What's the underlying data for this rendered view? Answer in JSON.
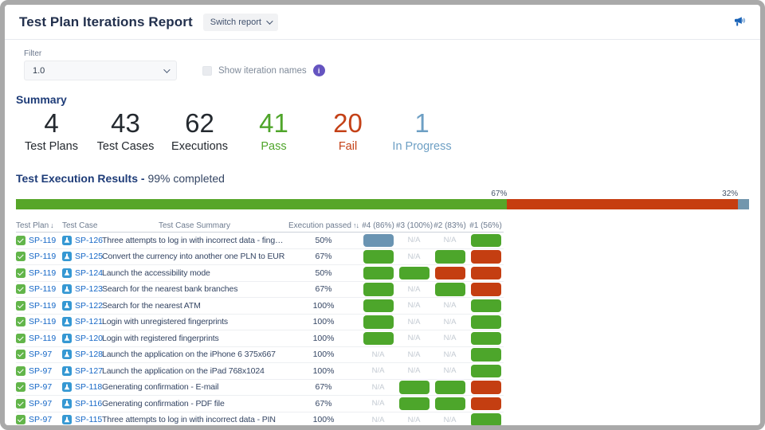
{
  "header": {
    "title": "Test Plan Iterations Report",
    "switch_report_label": "Switch report"
  },
  "filter": {
    "label": "Filter",
    "value": "1.0",
    "show_iteration_names_label": "Show iteration names",
    "info_glyph": "i",
    "checkbox_checked": false
  },
  "summary": {
    "title": "Summary",
    "stats": [
      {
        "value": "4",
        "label": "Test Plans",
        "color": "#24292f"
      },
      {
        "value": "43",
        "label": "Test Cases",
        "color": "#24292f"
      },
      {
        "value": "62",
        "label": "Executions",
        "color": "#24292f"
      },
      {
        "value": "41",
        "label": "Pass",
        "color": "#4fa52a"
      },
      {
        "value": "20",
        "label": "Fail",
        "color": "#c44117"
      },
      {
        "value": "1",
        "label": "In Progress",
        "color": "#6d9fc4"
      }
    ]
  },
  "results": {
    "title_bold": "Test Execution Results -",
    "completed_text": "99% completed",
    "progress": {
      "segments": [
        {
          "name": "passed",
          "percent": 67,
          "label": "67%",
          "color": "#57a629"
        },
        {
          "name": "failed",
          "percent": 31.5,
          "label": "32%",
          "color": "#c63d10"
        },
        {
          "name": "in_progress",
          "percent": 1.5,
          "label": "",
          "color": "#7296ad"
        }
      ]
    }
  },
  "table": {
    "header": {
      "plan": "Test Plan",
      "plan_sort": "↓",
      "case": "Test Case",
      "summary": "Test Case Summary",
      "passed": "Execution passed",
      "passed_sort": "↑↓",
      "iterations": [
        "#4 (86%)",
        "#3 (100%)",
        "#2 (83%)",
        "#1 (56%)"
      ]
    },
    "na_label": "N/A",
    "status_colors": {
      "pass": "#4da62b",
      "fail": "#c43e11",
      "inprogress": "#6a94b2"
    },
    "rows": [
      {
        "plan": "SP-119",
        "case": "SP-126",
        "summary": "Three attempts to log in with incorrect data - fingerprints",
        "passed": "50%",
        "statuses": [
          "inprogress",
          "na",
          "na",
          "pass"
        ]
      },
      {
        "plan": "SP-119",
        "case": "SP-125",
        "summary": "Convert the currency into another one PLN to EUR",
        "passed": "67%",
        "statuses": [
          "pass",
          "na",
          "pass",
          "fail"
        ]
      },
      {
        "plan": "SP-119",
        "case": "SP-124",
        "summary": "Launch the accessibility mode",
        "passed": "50%",
        "statuses": [
          "pass",
          "pass",
          "fail",
          "fail"
        ]
      },
      {
        "plan": "SP-119",
        "case": "SP-123",
        "summary": "Search for the nearest bank branches",
        "passed": "67%",
        "statuses": [
          "pass",
          "na",
          "pass",
          "fail"
        ]
      },
      {
        "plan": "SP-119",
        "case": "SP-122",
        "summary": "Search for the nearest ATM",
        "passed": "100%",
        "statuses": [
          "pass",
          "na",
          "na",
          "pass"
        ]
      },
      {
        "plan": "SP-119",
        "case": "SP-121",
        "summary": "Login with unregistered fingerprints",
        "passed": "100%",
        "statuses": [
          "pass",
          "na",
          "na",
          "pass"
        ]
      },
      {
        "plan": "SP-119",
        "case": "SP-120",
        "summary": "Login with registered fingerprints",
        "passed": "100%",
        "statuses": [
          "pass",
          "na",
          "na",
          "pass"
        ]
      },
      {
        "plan": "SP-97",
        "case": "SP-128",
        "summary": "Launch the application on the iPhone 6 375x667",
        "passed": "100%",
        "statuses": [
          "na",
          "na",
          "na",
          "pass"
        ]
      },
      {
        "plan": "SP-97",
        "case": "SP-127",
        "summary": "Launch the application on the iPad 768x1024",
        "passed": "100%",
        "statuses": [
          "na",
          "na",
          "na",
          "pass"
        ]
      },
      {
        "plan": "SP-97",
        "case": "SP-118",
        "summary": "Generating confirmation - E-mail",
        "passed": "67%",
        "statuses": [
          "na",
          "pass",
          "pass",
          "fail"
        ]
      },
      {
        "plan": "SP-97",
        "case": "SP-116",
        "summary": "Generating confirmation - PDF file",
        "passed": "67%",
        "statuses": [
          "na",
          "pass",
          "pass",
          "fail"
        ]
      },
      {
        "plan": "SP-97",
        "case": "SP-115",
        "summary": "Three attempts to log in with incorrect data - PIN",
        "passed": "100%",
        "statuses": [
          "na",
          "na",
          "na",
          "pass"
        ]
      }
    ]
  }
}
